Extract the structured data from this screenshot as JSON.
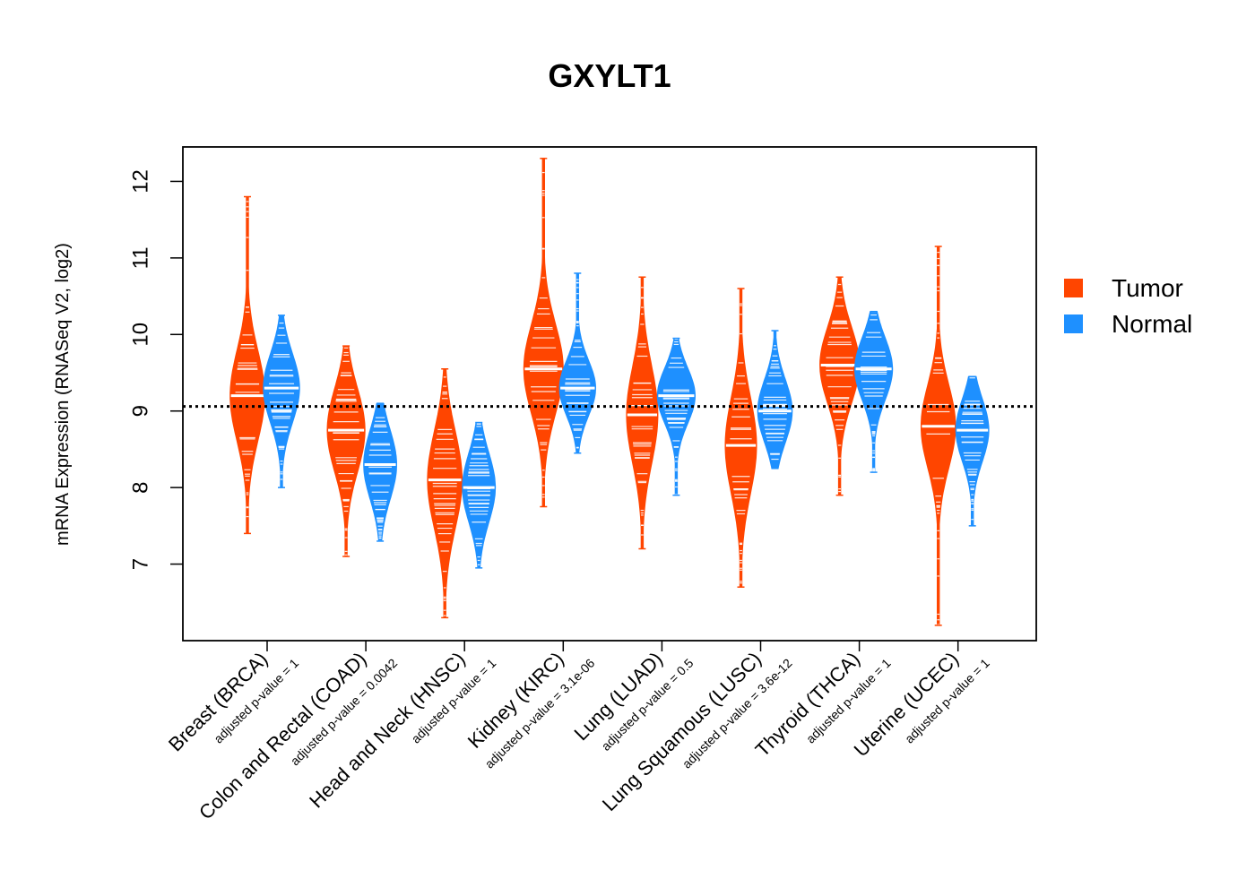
{
  "chart_data": {
    "type": "violin",
    "title": "GXYLT1",
    "ylabel": "mRNA Expression (RNASeq V2, log2)",
    "xlabel": "",
    "ylim": [
      6.0,
      12.45
    ],
    "yticks": [
      7,
      8,
      9,
      10,
      11,
      12
    ],
    "reference_line": 9.06,
    "legend": {
      "position": "right",
      "entries": [
        {
          "name": "Tumor",
          "color": "#ff4500"
        },
        {
          "name": "Normal",
          "color": "#1e90ff"
        }
      ]
    },
    "categories": [
      {
        "label": "Breast (BRCA)",
        "pvalue": "adjusted p-value = 1",
        "tumor": {
          "min": 7.4,
          "max": 11.8,
          "median": 9.2,
          "core_lo": 8.6,
          "core_hi": 9.9,
          "width": 0.85
        },
        "normal": {
          "min": 8.0,
          "max": 10.25,
          "median": 9.3,
          "core_lo": 8.8,
          "core_hi": 9.8,
          "width": 0.9
        }
      },
      {
        "label": "Colon and Rectal (COAD)",
        "pvalue": "adjusted p-value = 0.0042",
        "tumor": {
          "min": 7.1,
          "max": 9.85,
          "median": 8.75,
          "core_lo": 8.2,
          "core_hi": 9.4,
          "width": 0.95
        },
        "normal": {
          "min": 7.3,
          "max": 9.1,
          "median": 8.3,
          "core_lo": 7.8,
          "core_hi": 8.8,
          "width": 0.8
        }
      },
      {
        "label": "Head and Neck (HNSC)",
        "pvalue": "adjusted p-value = 1",
        "tumor": {
          "min": 6.3,
          "max": 9.55,
          "median": 8.1,
          "core_lo": 7.4,
          "core_hi": 8.8,
          "width": 0.85
        },
        "normal": {
          "min": 6.95,
          "max": 8.85,
          "median": 8.0,
          "core_lo": 7.5,
          "core_hi": 8.5,
          "width": 0.8
        }
      },
      {
        "label": "Kidney (KIRC)",
        "pvalue": "adjusted p-value = 3.1e-06",
        "tumor": {
          "min": 7.75,
          "max": 12.3,
          "median": 9.55,
          "core_lo": 8.9,
          "core_hi": 10.2,
          "width": 1.0
        },
        "normal": {
          "min": 8.45,
          "max": 10.8,
          "median": 9.3,
          "core_lo": 8.9,
          "core_hi": 9.7,
          "width": 0.9
        }
      },
      {
        "label": "Lung (LUAD)",
        "pvalue": "adjusted p-value = 0.5",
        "tumor": {
          "min": 7.2,
          "max": 10.75,
          "median": 8.95,
          "core_lo": 8.3,
          "core_hi": 9.7,
          "width": 0.75
        },
        "normal": {
          "min": 7.9,
          "max": 9.95,
          "median": 9.2,
          "core_lo": 8.8,
          "core_hi": 9.6,
          "width": 0.95
        }
      },
      {
        "label": "Lung Squamous (LUSC)",
        "pvalue": "adjusted p-value = 3.6e-12",
        "tumor": {
          "min": 6.7,
          "max": 10.6,
          "median": 8.55,
          "core_lo": 7.9,
          "core_hi": 9.3,
          "width": 0.75
        },
        "normal": {
          "min": 8.25,
          "max": 10.05,
          "median": 9.0,
          "core_lo": 8.6,
          "core_hi": 9.5,
          "width": 0.85
        }
      },
      {
        "label": "Thyroid (THCA)",
        "pvalue": "adjusted p-value = 1",
        "tumor": {
          "min": 7.9,
          "max": 10.75,
          "median": 9.6,
          "core_lo": 9.1,
          "core_hi": 10.2,
          "width": 1.0
        },
        "normal": {
          "min": 8.2,
          "max": 10.3,
          "median": 9.55,
          "core_lo": 9.1,
          "core_hi": 10.0,
          "width": 0.95
        }
      },
      {
        "label": "Uterine (UCEC)",
        "pvalue": "adjusted p-value = 1",
        "tumor": {
          "min": 6.2,
          "max": 11.15,
          "median": 8.8,
          "core_lo": 8.2,
          "core_hi": 9.4,
          "width": 0.85
        },
        "normal": {
          "min": 7.5,
          "max": 9.45,
          "median": 8.75,
          "core_lo": 8.3,
          "core_hi": 9.2,
          "width": 0.8
        }
      }
    ]
  }
}
